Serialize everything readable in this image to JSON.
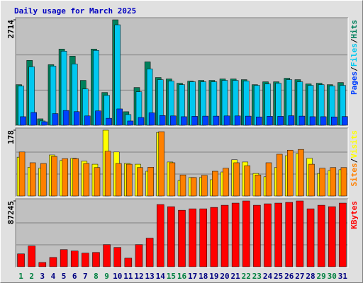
{
  "chart_data": [
    {
      "type": "bar",
      "title": "Daily usage for March 2025",
      "title_color": "#0000C0",
      "ylim": [
        0,
        2714
      ],
      "yticks": [
        2714
      ],
      "legend_separator": "/",
      "series": [
        {
          "name": "Hits",
          "color": "#00805C",
          "values": [
            1045,
            1669,
            165,
            1559,
            1962,
            1779,
            1155,
            1962,
            844,
            2714,
            348,
            972,
            1632,
            1229,
            1192,
            1082,
            1137,
            1155,
            1155,
            1192,
            1192,
            1174,
            1045,
            1119,
            1119,
            1210,
            1174,
            1064,
            1082,
            1045,
            1100
          ]
        },
        {
          "name": "Files",
          "color": "#00C8F0",
          "values": [
            1009,
            1504,
            110,
            1522,
            1907,
            1577,
            935,
            1926,
            770,
            2586,
            275,
            862,
            1449,
            1174,
            1137,
            1045,
            1119,
            1119,
            1119,
            1155,
            1155,
            1137,
            1027,
            1064,
            1082,
            1174,
            1119,
            1027,
            1045,
            1009,
            1027
          ]
        },
        {
          "name": "Pages",
          "color": "#0040FF",
          "values": [
            220,
            330,
            90,
            300,
            380,
            350,
            240,
            370,
            180,
            420,
            110,
            200,
            320,
            250,
            240,
            220,
            230,
            235,
            235,
            240,
            240,
            235,
            215,
            230,
            230,
            245,
            235,
            220,
            220,
            215,
            225
          ]
        }
      ]
    },
    {
      "type": "bar",
      "ylim": [
        0,
        178
      ],
      "yticks": [
        178
      ],
      "legend_separator": "/",
      "series": [
        {
          "name": "Visits",
          "color": "#FFFF00",
          "values": [
            105,
            78,
            75,
            111,
            96,
            102,
            94,
            86,
            178,
            119,
            88,
            86,
            67,
            172,
            92,
            42,
            50,
            50,
            44,
            65,
            98,
            92,
            61,
            52,
            77,
            109,
            115,
            102,
            61,
            69,
            71
          ]
        },
        {
          "name": "Sites",
          "color": "#FF8000",
          "values": [
            119,
            90,
            88,
            107,
            101,
            101,
            88,
            77,
            121,
            88,
            86,
            77,
            78,
            174,
            90,
            57,
            50,
            56,
            67,
            75,
            90,
            82,
            57,
            90,
            113,
            124,
            126,
            86,
            75,
            77,
            77
          ]
        }
      ]
    },
    {
      "type": "bar",
      "ylim": [
        0,
        87245
      ],
      "yticks": [
        87245
      ],
      "categories": [
        "1",
        "2",
        "3",
        "4",
        "5",
        "6",
        "7",
        "8",
        "9",
        "10",
        "11",
        "12",
        "13",
        "14",
        "15",
        "16",
        "17",
        "18",
        "19",
        "20",
        "21",
        "22",
        "23",
        "24",
        "25",
        "26",
        "27",
        "28",
        "29",
        "30",
        "31"
      ],
      "category_colors": [
        "#008040",
        "#008040",
        "#000080",
        "#000080",
        "#000080",
        "#000080",
        "#000080",
        "#008040",
        "#008040",
        "#000080",
        "#000080",
        "#000080",
        "#000080",
        "#000080",
        "#008040",
        "#008040",
        "#000080",
        "#000080",
        "#000080",
        "#000080",
        "#000080",
        "#008040",
        "#008040",
        "#000080",
        "#000080",
        "#000080",
        "#000080",
        "#000080",
        "#008040",
        "#008040",
        "#000080"
      ],
      "series": [
        {
          "name": "KBytes",
          "color": "#FF0000",
          "values": [
            17070,
            27500,
            5690,
            12328,
            22760,
            20860,
            18018,
            18966,
            29400,
            25600,
            11380,
            29400,
            37930,
            82500,
            79660,
            74920,
            76820,
            76820,
            78710,
            81550,
            84400,
            87245,
            81550,
            83450,
            84400,
            85350,
            87245,
            76820,
            81550,
            79660,
            84400
          ]
        }
      ]
    }
  ]
}
